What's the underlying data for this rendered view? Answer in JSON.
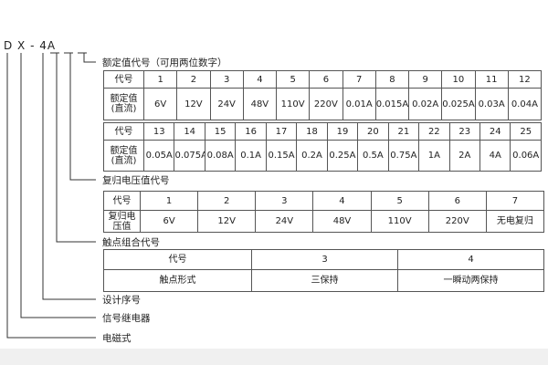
{
  "model": "D X - 4A",
  "rated": {
    "label": "额定值代号（可用两位数字）",
    "header": "代号",
    "row_label": "额定值\n(直流)",
    "codes1": [
      "1",
      "2",
      "3",
      "4",
      "5",
      "6",
      "7",
      "8",
      "9",
      "10",
      "11",
      "12"
    ],
    "values1": [
      "6V",
      "12V",
      "24V",
      "48V",
      "110V",
      "220V",
      "0.01A",
      "0.015A",
      "0.02A",
      "0.025A",
      "0.03A",
      "0.04A"
    ],
    "codes2": [
      "13",
      "14",
      "15",
      "16",
      "17",
      "18",
      "19",
      "20",
      "21",
      "22",
      "23",
      "24",
      "25"
    ],
    "values2": [
      "0.05A",
      "0.075A",
      "0.08A",
      "0.1A",
      "0.15A",
      "0.2A",
      "0.25A",
      "0.5A",
      "0.75A",
      "1A",
      "2A",
      "4A",
      "0.06A"
    ]
  },
  "reset": {
    "label": "复归电压值代号",
    "header": "代号",
    "row_label": "复归电压值",
    "codes": [
      "1",
      "2",
      "3",
      "4",
      "5",
      "6",
      "7"
    ],
    "values": [
      "6V",
      "12V",
      "24V",
      "48V",
      "110V",
      "220V",
      "无电复归"
    ]
  },
  "contact": {
    "label": "触点组合代号",
    "header": "代号",
    "row_label": "触点形式",
    "codes": [
      "3",
      "4"
    ],
    "values": [
      "三保持",
      "一瞬动两保持"
    ]
  },
  "design_label": "设计序号",
  "signal_label": "信号继电器",
  "em_label": "电磁式"
}
